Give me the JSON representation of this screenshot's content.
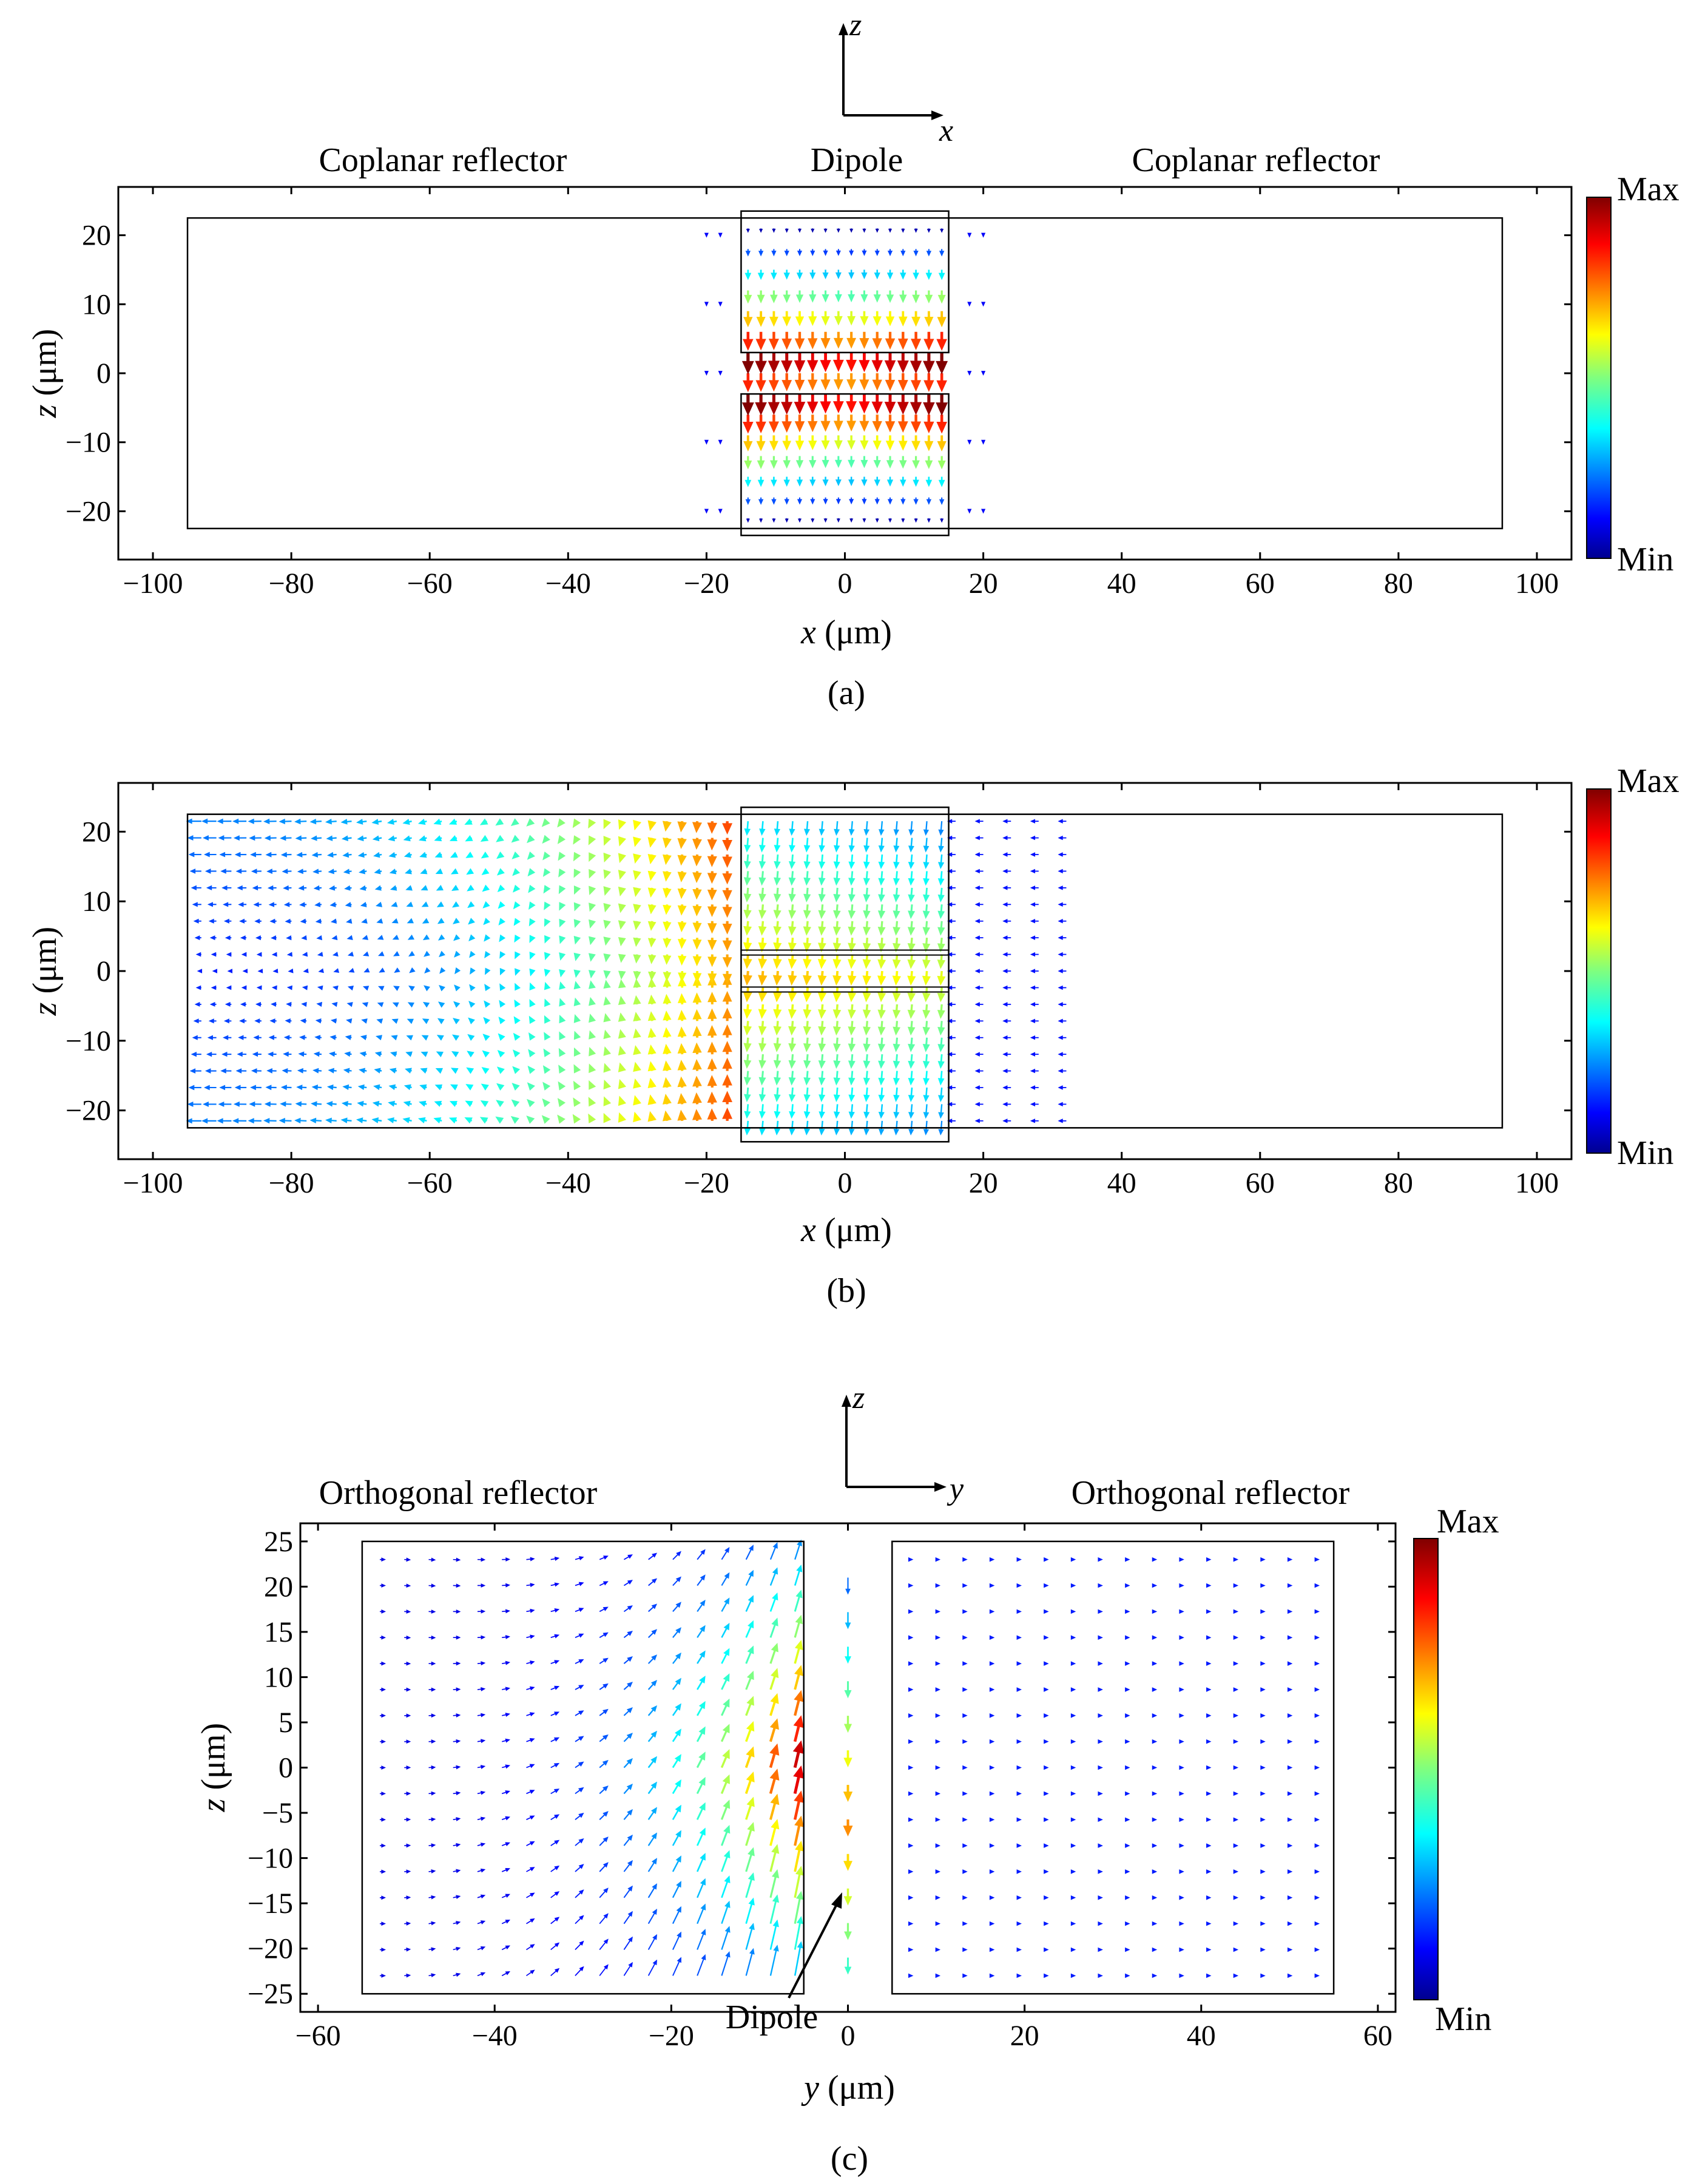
{
  "figure": {
    "panels_caption": [
      "(a)",
      "(b)",
      "(c)"
    ]
  },
  "colorbar": {
    "max_label": "Max",
    "min_label": "Min"
  },
  "chart_data": [
    {
      "id": "a",
      "type": "quiver",
      "caption": "(a)",
      "region_labels": [
        "Coplanar reflector",
        "Dipole",
        "Coplanar reflector"
      ],
      "axes_indicator": {
        "vertical": "z",
        "horizontal": "x"
      },
      "xlabel_var": "x",
      "xlabel_unit": "(μm)",
      "ylabel_var": "z",
      "ylabel_unit": "(μm)",
      "xlim": [
        -105,
        105
      ],
      "ylim": [
        -27,
        27
      ],
      "xticks": [
        -100,
        -80,
        -60,
        -40,
        -20,
        0,
        20,
        40,
        60,
        80,
        100
      ],
      "yticks": [
        -20,
        -10,
        0,
        10,
        20
      ],
      "regions": [
        {
          "name": "reflector-left-to-right",
          "x": [
            -95,
            95
          ],
          "z": [
            -22.5,
            22.5
          ]
        },
        {
          "name": "dipole-arm-top",
          "x": [
            -15,
            15
          ],
          "z": [
            3,
            23.5
          ]
        },
        {
          "name": "dipole-arm-bottom",
          "x": [
            -15,
            15
          ],
          "z": [
            -23.5,
            -3
          ]
        }
      ],
      "field": "dipole-only, arrows point -z inside arms, strongest near gap",
      "arrow_grid": {
        "x": [
          -14,
          14,
          16
        ],
        "z": [
          -21,
          21,
          15
        ]
      }
    },
    {
      "id": "b",
      "type": "quiver",
      "caption": "(b)",
      "region_labels": [],
      "xlabel_var": "x",
      "xlabel_unit": "(μm)",
      "ylabel_var": "z",
      "ylabel_unit": "(μm)",
      "xlim": [
        -105,
        105
      ],
      "ylim": [
        -27,
        27
      ],
      "xticks": [
        -100,
        -80,
        -60,
        -40,
        -20,
        0,
        20,
        40,
        60,
        80,
        100
      ],
      "yticks": [
        -20,
        -10,
        0,
        10,
        20
      ],
      "regions": [
        {
          "name": "reflector",
          "x": [
            -95,
            95
          ],
          "z": [
            -22.5,
            22.5
          ]
        },
        {
          "name": "dipole",
          "x": [
            -15,
            15
          ],
          "z": [
            -24.5,
            23.5
          ]
        }
      ],
      "field": "current induced on left reflector, arrows curving from left edge toward dipole",
      "arrow_grid": {
        "x": [
          -94,
          -16,
          34
        ],
        "z": [
          -21.5,
          21.5,
          19
        ]
      }
    },
    {
      "id": "c",
      "type": "quiver",
      "caption": "(c)",
      "region_labels": [
        "Orthogonal reflector",
        "Orthogonal reflector"
      ],
      "axes_indicator": {
        "vertical": "z",
        "horizontal": "y"
      },
      "annotation": "Dipole",
      "xlabel_var": "y",
      "xlabel_unit": "(μm)",
      "ylabel_var": "z",
      "ylabel_unit": "(μm)",
      "xlim": [
        -62,
        62
      ],
      "ylim": [
        -27,
        27
      ],
      "xticks": [
        -60,
        -40,
        -20,
        0,
        20,
        40,
        60
      ],
      "yticks": [
        -25,
        -20,
        -15,
        -10,
        -5,
        0,
        5,
        10,
        15,
        20,
        25
      ],
      "regions": [
        {
          "name": "reflector-left",
          "x": [
            -55,
            -5
          ],
          "z": [
            -25,
            25
          ]
        },
        {
          "name": "reflector-right",
          "x": [
            5,
            55
          ],
          "z": [
            -25,
            25
          ]
        }
      ],
      "field": "current on left orthogonal reflector, strongest near y=-5 flowing +z; dipole at y=0 flowing -z",
      "arrow_grid": {
        "x": [
          -53,
          -6,
          18
        ],
        "z": [
          -23,
          23,
          17
        ]
      }
    }
  ]
}
